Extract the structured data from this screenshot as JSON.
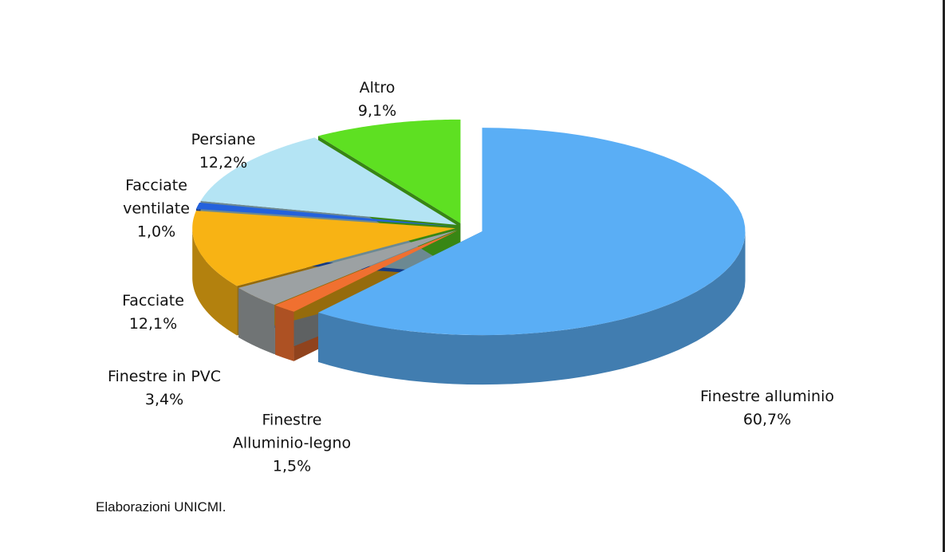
{
  "chart_data": {
    "type": "pie3d",
    "categories": [
      "Finestre alluminio",
      "Finestre\nAlluminio-legno",
      "Finestre in PVC",
      "Facciate",
      "Facciate\nventilate",
      "Persiane",
      "Altro"
    ],
    "values": [
      60.7,
      1.5,
      3.4,
      12.1,
      1.0,
      12.2,
      9.1
    ],
    "value_labels": [
      "60,7%",
      "1,5%",
      "3,4%",
      "12,1%",
      "1,0%",
      "12,2%",
      "9,1%"
    ],
    "colors": [
      "#5aaef5",
      "#f07030",
      "#9ca1a3",
      "#f8b314",
      "#2462dc",
      "#b4e4f4",
      "#5ee022"
    ],
    "source": "Elaborazioni UNICMI."
  }
}
